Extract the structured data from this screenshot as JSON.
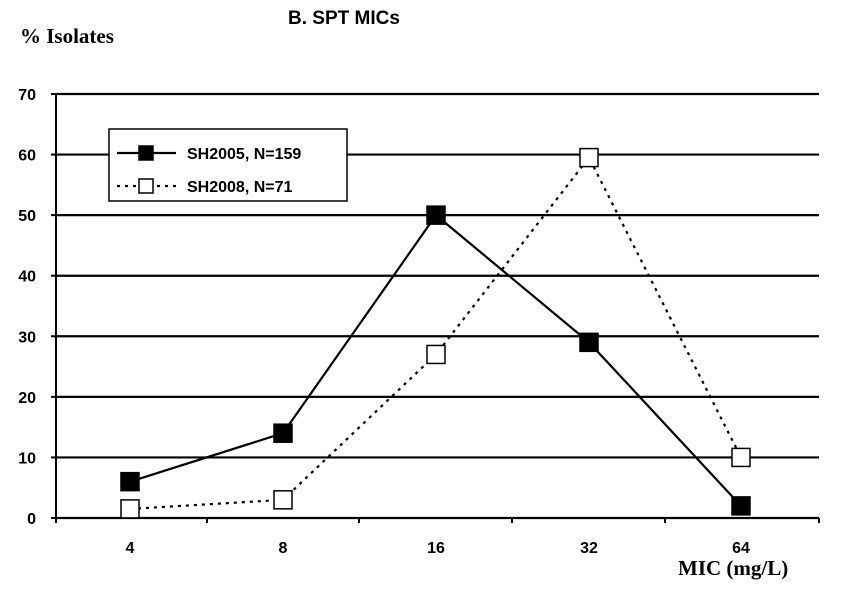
{
  "chart_data": {
    "type": "line",
    "title": "B. SPT MICs",
    "ylabel": "% Isolates",
    "xlabel": "MIC (mg/L)",
    "categories": [
      "4",
      "8",
      "16",
      "32",
      "64"
    ],
    "ylim": [
      0,
      70
    ],
    "yticks": [
      0,
      10,
      20,
      30,
      40,
      50,
      60,
      70
    ],
    "grid": true,
    "legend_position": "top-left",
    "series": [
      {
        "name": "SH2005, N=159",
        "values": [
          6,
          14,
          50,
          29,
          2
        ],
        "line_style": "solid",
        "marker": "filled-square",
        "color": "#000000"
      },
      {
        "name": "SH2008, N=71",
        "values": [
          1.5,
          3,
          27,
          59.5,
          10
        ],
        "line_style": "dotted",
        "marker": "open-square",
        "color": "#000000"
      }
    ]
  }
}
